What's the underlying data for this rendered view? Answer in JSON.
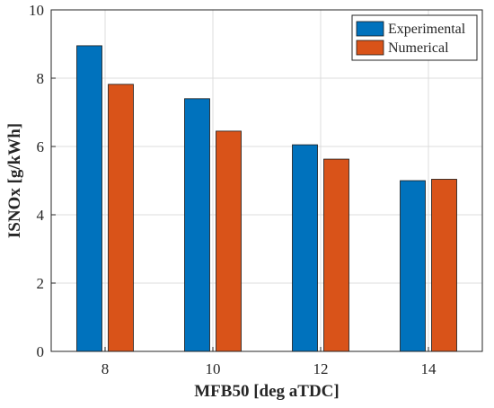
{
  "chart_data": {
    "type": "bar",
    "title": "",
    "xlabel": "MFB50 [deg aTDC]",
    "ylabel": "ISNOx [g/kWh]",
    "categories": [
      "8",
      "10",
      "12",
      "14"
    ],
    "ylim": [
      0,
      10
    ],
    "yticks": [
      "0",
      "2",
      "4",
      "6",
      "8",
      "10"
    ],
    "grid": true,
    "legend_position": "top-right",
    "series": [
      {
        "name": "Experimental",
        "color": "#0072BD",
        "values": [
          8.95,
          7.4,
          6.05,
          5.0
        ]
      },
      {
        "name": "Numerical",
        "color": "#D95319",
        "values": [
          7.82,
          6.45,
          5.63,
          5.04
        ]
      }
    ]
  }
}
